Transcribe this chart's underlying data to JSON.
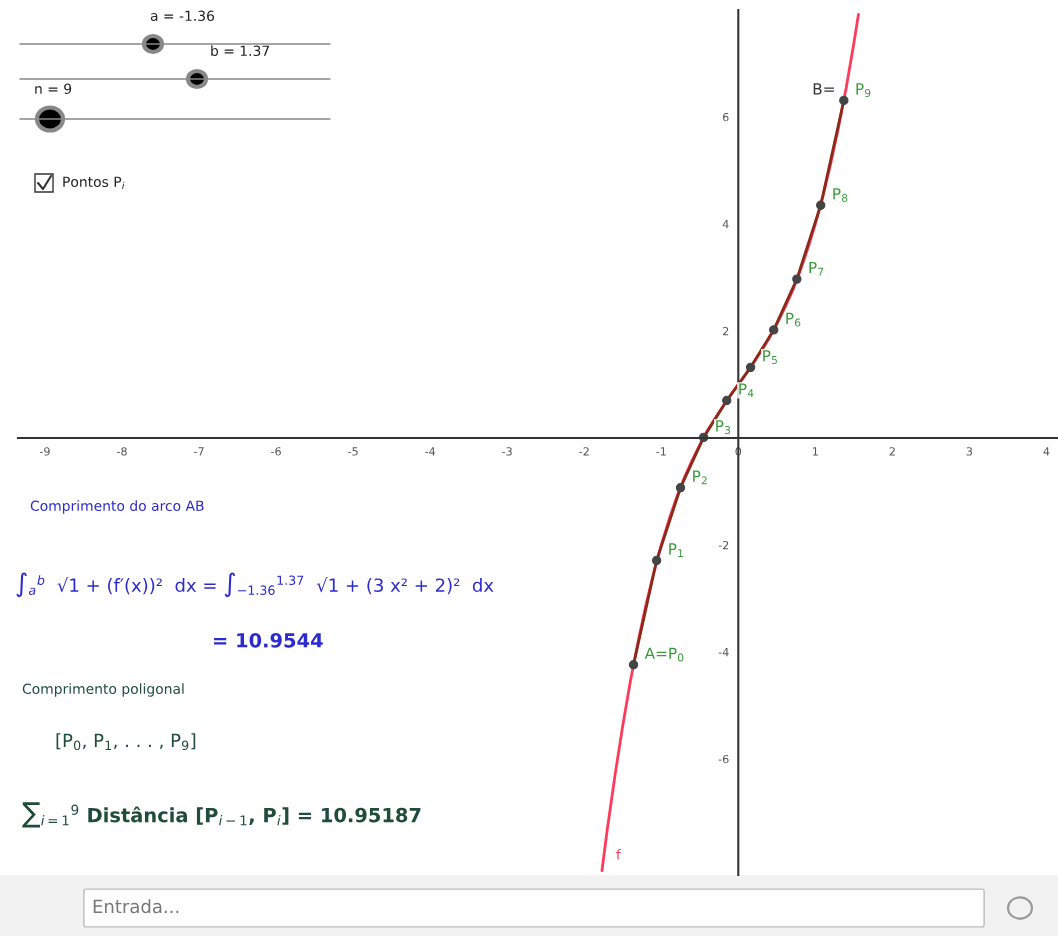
{
  "chart_data": {
    "type": "line",
    "xlim": [
      -9.35,
      4.15
    ],
    "ylim": [
      -8.17,
      8.0
    ],
    "xticks": [
      -9,
      -8,
      -7,
      -6,
      -5,
      -4,
      -3,
      -2,
      -1,
      0,
      1,
      2,
      3,
      4
    ],
    "yticks": [
      -6,
      -4,
      -2,
      2,
      4,
      6
    ],
    "grid": false,
    "legend": false,
    "marker": "circle",
    "line_style": "solid",
    "series": [
      {
        "name": "f",
        "marker": "none",
        "color": "#ff3b5c",
        "x": [
          -1.77,
          -1.7,
          -1.6,
          -1.5,
          -1.4,
          -1.3,
          -1.2,
          -1.1,
          -1.0,
          -0.9,
          -0.8,
          -0.7,
          -0.6,
          -0.5,
          -0.4,
          -0.3,
          -0.2,
          -0.1,
          0.0,
          0.1,
          0.2,
          0.3,
          0.4,
          0.5,
          0.6,
          0.7,
          0.8,
          0.9,
          1.0,
          1.1,
          1.2,
          1.3,
          1.4,
          1.5,
          1.56
        ],
        "values": [
          -8.09,
          -7.31,
          -6.3,
          -5.38,
          -4.54,
          -3.8,
          -3.13,
          -2.53,
          -2.0,
          -1.53,
          -1.11,
          -0.74,
          -0.42,
          -0.13,
          0.14,
          0.37,
          0.59,
          0.8,
          1.0,
          1.2,
          1.41,
          1.63,
          1.86,
          2.13,
          2.42,
          2.74,
          3.11,
          3.53,
          4.0,
          4.53,
          5.13,
          5.8,
          6.54,
          7.38,
          7.92
        ]
      },
      {
        "color": "#8b2a1a",
        "x": [
          -1.36,
          -1.06,
          -0.75,
          -0.45,
          -0.15,
          0.16,
          0.46,
          0.76,
          1.07,
          1.37
        ],
        "values": [
          -4.24,
          -2.29,
          -0.93,
          0.01,
          0.7,
          1.32,
          2.02,
          2.97,
          4.35,
          6.31
        ]
      }
    ],
    "annotations": [
      "a = -1.36",
      "b = 1.37",
      "n = 9",
      "Pontos P$_{i}$",
      "Comprimento do arco AB",
      "∫$_{a}$$^{b}$  √1 + (f′(x))²  dx = ∫$_{−1.36}$$^{1.37}$  √1 + (3 x² + 2)²  dx",
      "= 10.9544",
      "Comprimento poligonal",
      "[P$_{0}$, P$_{1}$, . . . , P$_{9}$]",
      "∑$_{i=1}$$^{9}$ Distância [P$_{i−1}$, P$_{i}$] = 10.95187",
      "Entrada...",
      {
        "text": "A=P$_{0}$",
        "x": -1.36,
        "y": -4.24
      },
      {
        "text": "P$_{1}$",
        "x": -1.06,
        "y": -2.29
      },
      {
        "text": "P$_{2}$",
        "x": -0.75,
        "y": -0.93
      },
      {
        "text": "P$_{3}$",
        "x": -0.45,
        "y": 0.01
      },
      {
        "text": "P$_{4}$",
        "x": -0.15,
        "y": 0.7
      },
      {
        "text": "P$_{5}$",
        "x": 0.16,
        "y": 1.32
      },
      {
        "text": "P$_{6}$",
        "x": 0.46,
        "y": 2.02
      },
      {
        "text": "P$_{7}$",
        "x": 0.76,
        "y": 2.97
      },
      {
        "text": "P$_{8}$",
        "x": 1.07,
        "y": 4.35
      },
      {
        "text": "B=",
        "x": 1.37,
        "y": 6.31
      },
      {
        "text": "P$_{9}$",
        "x": 1.37,
        "y": 6.31
      }
    ]
  }
}
